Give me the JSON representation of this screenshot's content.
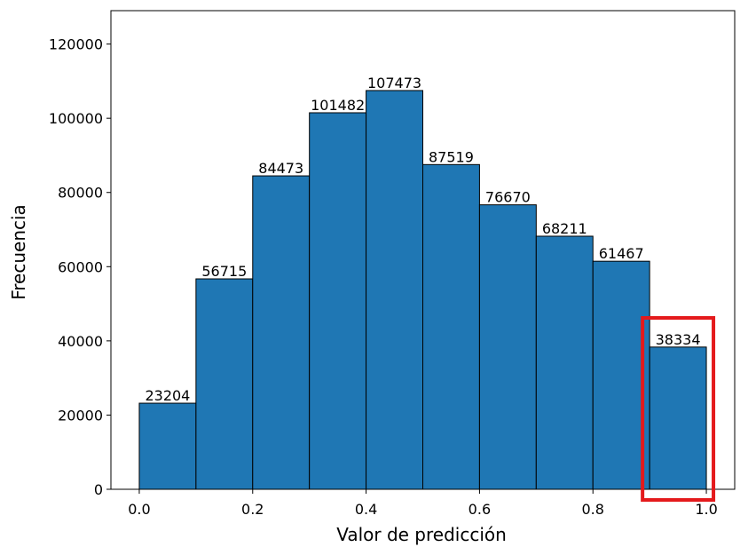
{
  "chart_data": {
    "type": "bar",
    "bins": [
      {
        "start": 0.0,
        "end": 0.1,
        "value": 23204
      },
      {
        "start": 0.1,
        "end": 0.2,
        "value": 56715
      },
      {
        "start": 0.2,
        "end": 0.3,
        "value": 84473
      },
      {
        "start": 0.3,
        "end": 0.4,
        "value": 101482
      },
      {
        "start": 0.4,
        "end": 0.5,
        "value": 107473
      },
      {
        "start": 0.5,
        "end": 0.6,
        "value": 87519
      },
      {
        "start": 0.6,
        "end": 0.7,
        "value": 76670
      },
      {
        "start": 0.7,
        "end": 0.8,
        "value": 68211
      },
      {
        "start": 0.8,
        "end": 0.9,
        "value": 61467
      },
      {
        "start": 0.9,
        "end": 1.0,
        "value": 38334
      }
    ],
    "title": "",
    "xlabel": "Valor de predicción",
    "ylabel": "Frecuencia",
    "xlim": [
      -0.05,
      1.05
    ],
    "ylim": [
      0,
      129000
    ],
    "xticks": [
      "0.0",
      "0.2",
      "0.4",
      "0.6",
      "0.8",
      "1.0"
    ],
    "yticks": [
      "0",
      "20000",
      "40000",
      "60000",
      "80000",
      "100000",
      "120000"
    ],
    "grid": false,
    "colors": {
      "bar": "#1f77b4",
      "edge": "#000000",
      "highlight": "#e41a1c"
    },
    "highlight": {
      "x_range": [
        0.9,
        1.0
      ],
      "note_color": "red"
    }
  }
}
